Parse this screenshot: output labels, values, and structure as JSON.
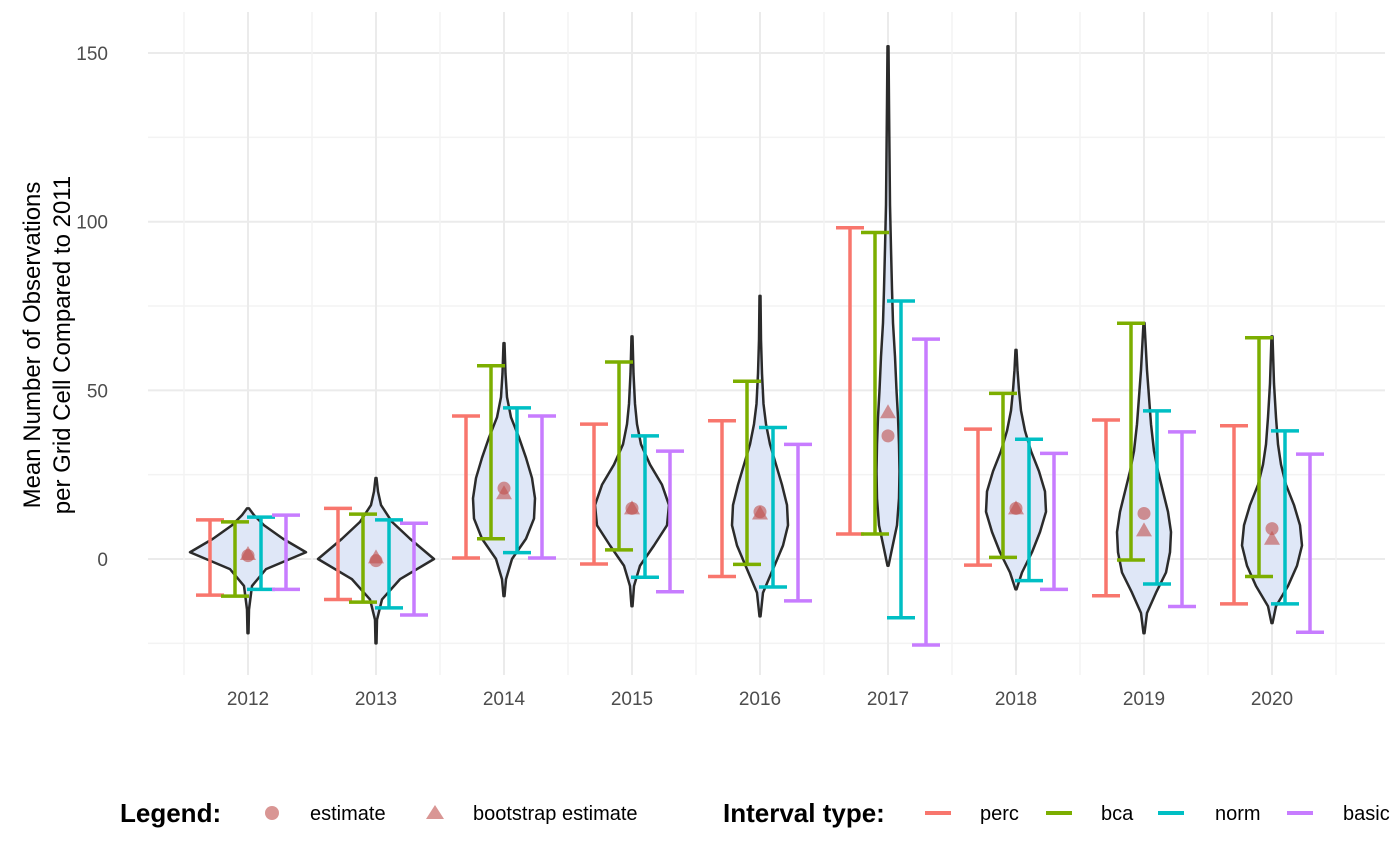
{
  "chart_data": {
    "type": "violin",
    "title": "",
    "xlabel": "",
    "ylabel_lines": [
      "Mean Number of Observations",
      "per Grid Cell Compared to 2011"
    ],
    "ylim": [
      -34,
      157
    ],
    "yticks": [
      0,
      50,
      100,
      150
    ],
    "ytick_labels": [
      "0",
      "50",
      "100",
      "150"
    ],
    "grid": true,
    "categories": [
      "2012",
      "2013",
      "2014",
      "2015",
      "2016",
      "2017",
      "2018",
      "2019",
      "2020"
    ],
    "interval_types": [
      "perc",
      "bca",
      "norm",
      "basic"
    ],
    "interval_colors": {
      "perc": "#F8766D",
      "bca": "#7CAE00",
      "norm": "#00BFC4",
      "basic": "#C77CFF"
    },
    "estimate": [
      1,
      -0.5,
      21,
      15,
      14,
      36.5,
      15,
      13.5,
      9
    ],
    "bootstrap_estimate": [
      1.5,
      0.5,
      19.5,
      15,
      13.5,
      43.5,
      15,
      8.5,
      6
    ],
    "intervals": {
      "perc": [
        [
          -10.7,
          11.6
        ],
        [
          -12,
          15
        ],
        [
          0.3,
          42.4
        ],
        [
          -1.5,
          40
        ],
        [
          -5.2,
          41
        ],
        [
          7.4,
          98.2
        ],
        [
          -1.8,
          38.5
        ],
        [
          -10.9,
          41.2
        ],
        [
          -13.3,
          39.5
        ]
      ],
      "bca": [
        [
          -11,
          11
        ],
        [
          -12.8,
          13.3
        ],
        [
          6,
          57.3
        ],
        [
          2.7,
          58.4
        ],
        [
          -1.6,
          52.7
        ],
        [
          7.4,
          96.8
        ],
        [
          0.5,
          49.1
        ],
        [
          -0.3,
          69.9
        ],
        [
          -5.2,
          65.6
        ]
      ],
      "norm": [
        [
          -9,
          12.4
        ],
        [
          -14.5,
          11.6
        ],
        [
          1.9,
          44.8
        ],
        [
          -5.4,
          36.5
        ],
        [
          -8.3,
          39
        ],
        [
          -17.4,
          76.5
        ],
        [
          -6.4,
          35.5
        ],
        [
          -7.4,
          43.9
        ],
        [
          -13.3,
          38
        ]
      ],
      "basic": [
        [
          -9,
          13
        ],
        [
          -16.6,
          10.6
        ],
        [
          0.3,
          42.4
        ],
        [
          -9.7,
          32
        ],
        [
          -12.4,
          34
        ],
        [
          -25.5,
          65.2
        ],
        [
          -9,
          31.3
        ],
        [
          -14.1,
          37.7
        ],
        [
          -21.7,
          31.1
        ]
      ]
    },
    "violins": [
      {
        "year": "2012",
        "profile": [
          [
            -22,
            0.5
          ],
          [
            -15,
            1
          ],
          [
            -8,
            4
          ],
          [
            -3,
            18
          ],
          [
            2,
            58
          ],
          [
            6,
            35
          ],
          [
            10,
            16
          ],
          [
            13,
            6
          ],
          [
            15,
            1
          ]
        ]
      },
      {
        "year": "2013",
        "profile": [
          [
            -25,
            0.5
          ],
          [
            -18,
            1
          ],
          [
            -12,
            6
          ],
          [
            -6,
            24
          ],
          [
            0,
            58
          ],
          [
            6,
            34
          ],
          [
            11,
            16
          ],
          [
            16,
            5
          ],
          [
            20,
            2
          ],
          [
            24,
            0.5
          ]
        ]
      },
      {
        "year": "2014",
        "profile": [
          [
            -11,
            0.5
          ],
          [
            -6,
            2
          ],
          [
            0,
            8
          ],
          [
            6,
            22
          ],
          [
            12,
            30
          ],
          [
            18,
            31
          ],
          [
            24,
            28
          ],
          [
            30,
            22
          ],
          [
            36,
            15
          ],
          [
            42,
            7
          ],
          [
            48,
            3
          ],
          [
            55,
            1.5
          ],
          [
            64,
            0.5
          ]
        ]
      },
      {
        "year": "2015",
        "profile": [
          [
            -14,
            0.5
          ],
          [
            -8,
            2
          ],
          [
            -2,
            8
          ],
          [
            4,
            22
          ],
          [
            10,
            35
          ],
          [
            16,
            37
          ],
          [
            22,
            30
          ],
          [
            28,
            18
          ],
          [
            34,
            9
          ],
          [
            40,
            5
          ],
          [
            46,
            3
          ],
          [
            55,
            1.5
          ],
          [
            66,
            0.5
          ]
        ]
      },
      {
        "year": "2016",
        "profile": [
          [
            -17,
            0.5
          ],
          [
            -10,
            3
          ],
          [
            -3,
            13
          ],
          [
            4,
            23
          ],
          [
            10,
            28
          ],
          [
            16,
            27
          ],
          [
            22,
            22
          ],
          [
            28,
            16
          ],
          [
            34,
            10
          ],
          [
            40,
            6
          ],
          [
            46,
            3.5
          ],
          [
            55,
            2
          ],
          [
            65,
            1
          ],
          [
            78,
            0.5
          ]
        ]
      },
      {
        "year": "2017",
        "profile": [
          [
            -2,
            0.5
          ],
          [
            3,
            4
          ],
          [
            10,
            9
          ],
          [
            18,
            11
          ],
          [
            26,
            11.5
          ],
          [
            34,
            11
          ],
          [
            42,
            10
          ],
          [
            50,
            8.5
          ],
          [
            60,
            7
          ],
          [
            70,
            5
          ],
          [
            80,
            4
          ],
          [
            92,
            3
          ],
          [
            105,
            2
          ],
          [
            120,
            1.5
          ],
          [
            135,
            1
          ],
          [
            152,
            0.5
          ]
        ]
      },
      {
        "year": "2018",
        "profile": [
          [
            -9,
            0.5
          ],
          [
            -4,
            6
          ],
          [
            2,
            16
          ],
          [
            8,
            24
          ],
          [
            14,
            30
          ],
          [
            20,
            29
          ],
          [
            26,
            23
          ],
          [
            32,
            15
          ],
          [
            38,
            9
          ],
          [
            44,
            5
          ],
          [
            50,
            3
          ],
          [
            56,
            1.5
          ],
          [
            62,
            0.5
          ]
        ]
      },
      {
        "year": "2019",
        "profile": [
          [
            -22,
            0.5
          ],
          [
            -16,
            3
          ],
          [
            -10,
            12
          ],
          [
            -4,
            22
          ],
          [
            2,
            26
          ],
          [
            8,
            27
          ],
          [
            14,
            24
          ],
          [
            20,
            19
          ],
          [
            26,
            14
          ],
          [
            32,
            10
          ],
          [
            40,
            7
          ],
          [
            48,
            5
          ],
          [
            56,
            3
          ],
          [
            70,
            0.5
          ]
        ]
      },
      {
        "year": "2020",
        "profile": [
          [
            -19,
            0.5
          ],
          [
            -14,
            4
          ],
          [
            -8,
            16
          ],
          [
            -2,
            25
          ],
          [
            4,
            30
          ],
          [
            10,
            28
          ],
          [
            16,
            22
          ],
          [
            22,
            14
          ],
          [
            28,
            9
          ],
          [
            34,
            6
          ],
          [
            42,
            4
          ],
          [
            52,
            2
          ],
          [
            66,
            0.5
          ]
        ]
      }
    ]
  },
  "legend": {
    "shape_title": "Legend:",
    "shape_items": [
      {
        "label": "estimate",
        "symbol": "circle"
      },
      {
        "label": "bootstrap estimate",
        "symbol": "triangle"
      }
    ],
    "interval_title": "Interval type:",
    "interval_items": [
      {
        "label": "perc",
        "color": "#F8766D"
      },
      {
        "label": "bca",
        "color": "#7CAE00"
      },
      {
        "label": "norm",
        "color": "#00BFC4"
      },
      {
        "label": "basic",
        "color": "#C77CFF"
      }
    ]
  },
  "colors": {
    "violin_fill": "#dfe7f7",
    "violin_stroke": "#2b2b2b",
    "point_color": "#c0504d",
    "grid_major": "#ebebeb",
    "grid_minor": "#f3f3f3"
  }
}
